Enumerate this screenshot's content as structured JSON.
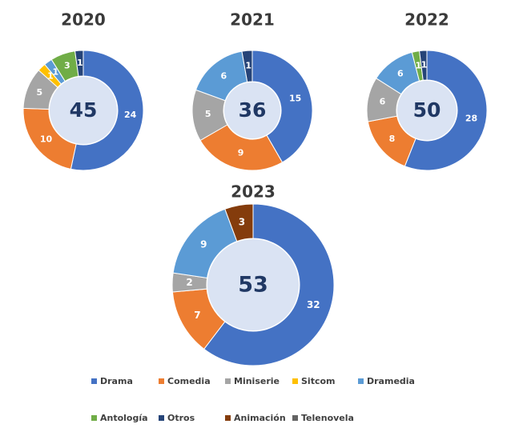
{
  "colors": {
    "Drama": "#4472C4",
    "Comedia": "#ED7D31",
    "Miniserie": "#A5A5A5",
    "Sitcom": "#FFC000",
    "Dramedia": "#5B9BD5",
    "Antología": "#70AD47",
    "Otros": "#264478",
    "Animación": "#843C0C",
    "Telenovela": "#636363",
    "center_fill": "#DAE3F3",
    "center_text": "#203864"
  },
  "legend": {
    "row1": [
      "Drama",
      "Comedia",
      "Miniserie",
      "Sitcom",
      "Dramedia"
    ],
    "row2": [
      "Antología",
      "Otros",
      "Animación",
      "Telenovela"
    ]
  },
  "chart_data": [
    {
      "type": "pie",
      "title": "2020",
      "total": "45",
      "slices": [
        {
          "name": "Drama",
          "value": 24
        },
        {
          "name": "Comedia",
          "value": 10
        },
        {
          "name": "Miniserie",
          "value": 5
        },
        {
          "name": "Sitcom",
          "value": 1
        },
        {
          "name": "Dramedia",
          "value": 1
        },
        {
          "name": "Antología",
          "value": 3
        },
        {
          "name": "Otros",
          "value": 1
        }
      ]
    },
    {
      "type": "pie",
      "title": "2021",
      "total": "36",
      "slices": [
        {
          "name": "Drama",
          "value": 15
        },
        {
          "name": "Comedia",
          "value": 9
        },
        {
          "name": "Miniserie",
          "value": 5
        },
        {
          "name": "Dramedia",
          "value": 6
        },
        {
          "name": "Otros",
          "value": 1
        }
      ]
    },
    {
      "type": "pie",
      "title": "2022",
      "total": "50",
      "slices": [
        {
          "name": "Drama",
          "value": 28
        },
        {
          "name": "Comedia",
          "value": 8
        },
        {
          "name": "Miniserie",
          "value": 6
        },
        {
          "name": "Dramedia",
          "value": 6
        },
        {
          "name": "Antología",
          "value": 1
        },
        {
          "name": "Otros",
          "value": 1
        }
      ]
    },
    {
      "type": "pie",
      "title": "2023",
      "total": "53",
      "slices": [
        {
          "name": "Drama",
          "value": 32
        },
        {
          "name": "Comedia",
          "value": 7
        },
        {
          "name": "Miniserie",
          "value": 2
        },
        {
          "name": "Dramedia",
          "value": 9
        },
        {
          "name": "Animación",
          "value": 3
        }
      ]
    }
  ]
}
